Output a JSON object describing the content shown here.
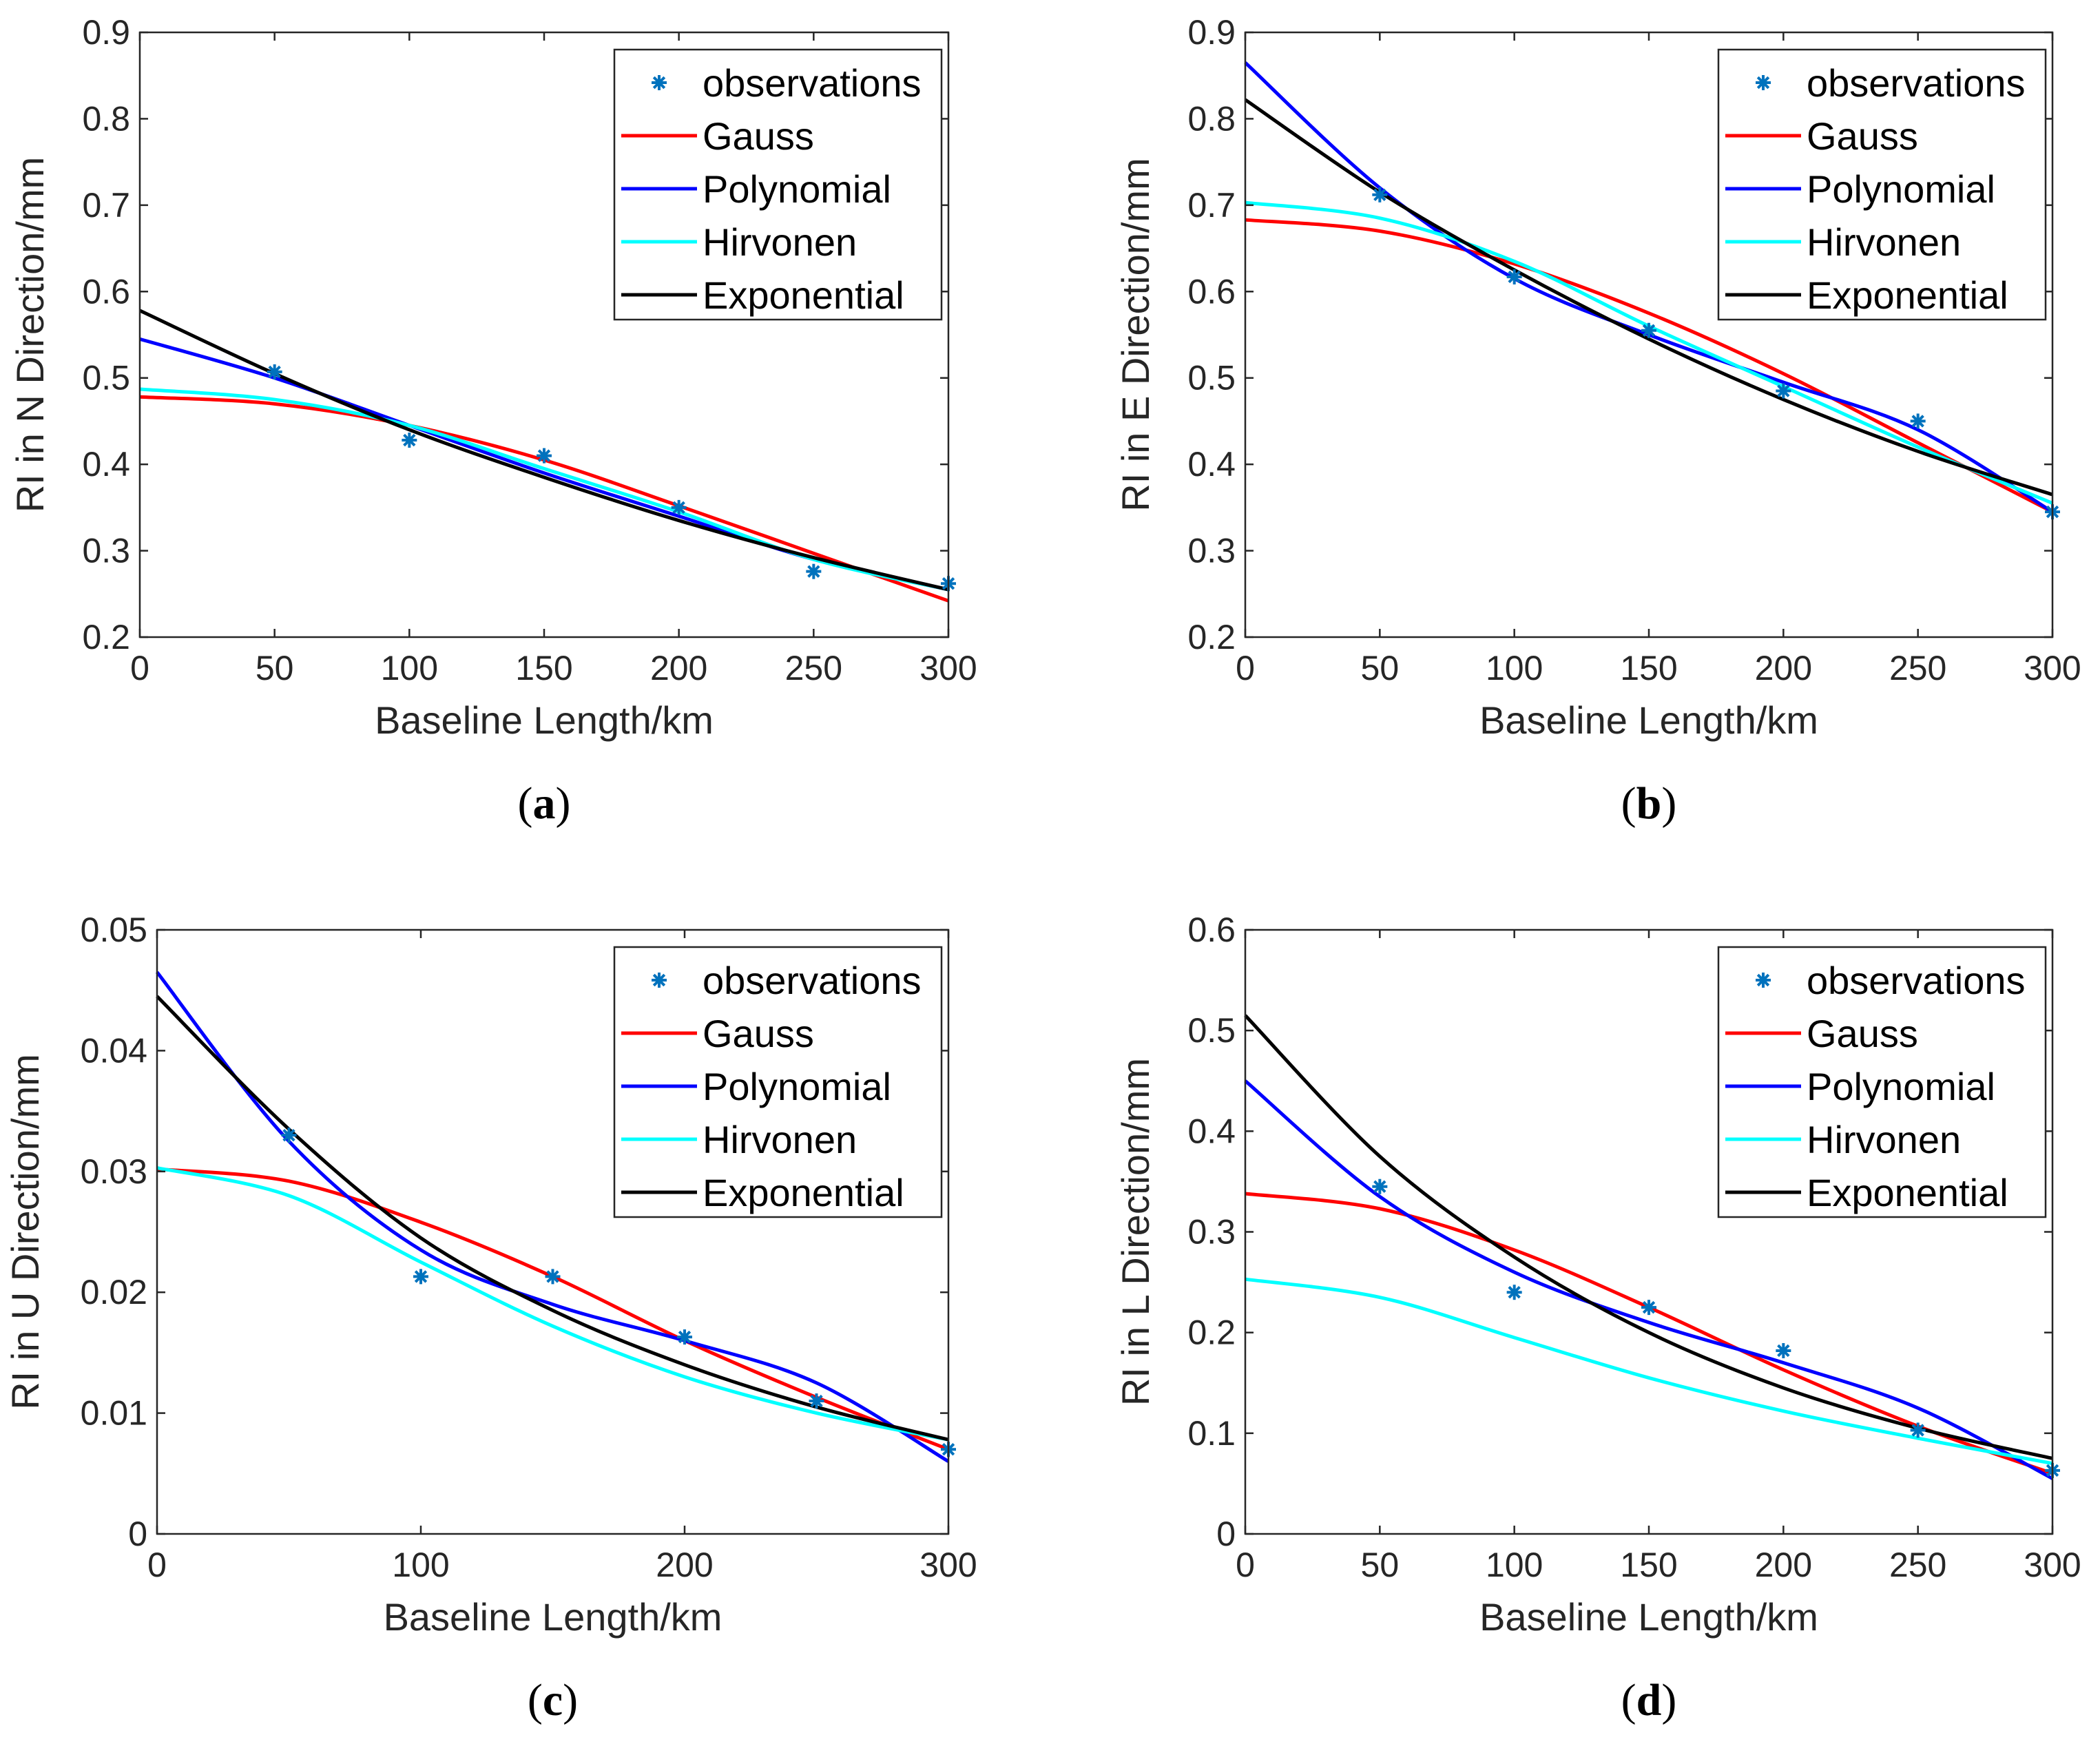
{
  "colors": {
    "observations": "#0072BD",
    "Gauss": "#FF0000",
    "Polynomial": "#0000FF",
    "Hirvonen": "#00FFFF",
    "Exponential": "#000000"
  },
  "chart_data": [
    {
      "type": "line",
      "caption": "a",
      "xlabel": "Baseline Length/km",
      "ylabel": "RI in N Direction/mm",
      "xlim": [
        0,
        300
      ],
      "ylim": [
        0.2,
        0.9
      ],
      "xticks": [
        0,
        50,
        100,
        150,
        200,
        250,
        300
      ],
      "yticks": [
        0.2,
        0.3,
        0.4,
        0.5,
        0.6,
        0.7,
        0.8,
        0.9
      ],
      "legend": "top-right",
      "legend_entries": [
        "observations",
        "Gauss",
        "Polynomial",
        "Hirvonen",
        "Exponential"
      ],
      "x": [
        0,
        50,
        100,
        150,
        200,
        250,
        300
      ],
      "observations": {
        "x": [
          50,
          100,
          150,
          200,
          250,
          300
        ],
        "y": [
          0.507,
          0.428,
          0.41,
          0.35,
          0.276,
          0.262
        ]
      },
      "series": [
        {
          "name": "Gauss",
          "values": [
            0.478,
            0.47,
            0.445,
            0.405,
            0.352,
            0.297,
            0.242
          ]
        },
        {
          "name": "Polynomial",
          "values": [
            0.545,
            0.5,
            0.445,
            0.39,
            0.34,
            0.29,
            0.255
          ]
        },
        {
          "name": "Hirvonen",
          "values": [
            0.487,
            0.475,
            0.445,
            0.395,
            0.345,
            0.29,
            0.255
          ]
        },
        {
          "name": "Exponential",
          "values": [
            0.578,
            0.505,
            0.44,
            0.385,
            0.335,
            0.292,
            0.255
          ]
        }
      ]
    },
    {
      "type": "line",
      "caption": "b",
      "xlabel": "Baseline Length/km",
      "ylabel": "RI in E Direction/mm",
      "xlim": [
        0,
        300
      ],
      "ylim": [
        0.2,
        0.9
      ],
      "xticks": [
        0,
        50,
        100,
        150,
        200,
        250,
        300
      ],
      "yticks": [
        0.2,
        0.3,
        0.4,
        0.5,
        0.6,
        0.7,
        0.8,
        0.9
      ],
      "legend": "top-right",
      "legend_entries": [
        "observations",
        "Gauss",
        "Polynomial",
        "Hirvonen",
        "Exponential"
      ],
      "x": [
        0,
        50,
        100,
        150,
        200,
        250,
        300
      ],
      "observations": {
        "x": [
          50,
          100,
          150,
          200,
          250,
          300
        ],
        "y": [
          0.712,
          0.617,
          0.555,
          0.485,
          0.45,
          0.345
        ]
      },
      "series": [
        {
          "name": "Gauss",
          "values": [
            0.683,
            0.67,
            0.632,
            0.575,
            0.505,
            0.425,
            0.345
          ]
        },
        {
          "name": "Polynomial",
          "values": [
            0.865,
            0.72,
            0.615,
            0.55,
            0.495,
            0.44,
            0.345
          ]
        },
        {
          "name": "Hirvonen",
          "values": [
            0.703,
            0.685,
            0.635,
            0.56,
            0.49,
            0.42,
            0.355
          ]
        },
        {
          "name": "Exponential",
          "values": [
            0.822,
            0.715,
            0.625,
            0.545,
            0.475,
            0.415,
            0.365
          ]
        }
      ]
    },
    {
      "type": "line",
      "caption": "c",
      "xlabel": "Baseline Length/km",
      "ylabel": "RI in U Direction/mm",
      "xlim": [
        0,
        300
      ],
      "ylim": [
        0,
        0.05
      ],
      "xticks": [
        0,
        100,
        200,
        300
      ],
      "yticks": [
        0,
        0.01,
        0.02,
        0.03,
        0.04,
        0.05
      ],
      "legend": "top-right",
      "legend_entries": [
        "observations",
        "Gauss",
        "Polynomial",
        "Hirvonen",
        "Exponential"
      ],
      "x": [
        0,
        50,
        100,
        150,
        200,
        250,
        300
      ],
      "observations": {
        "x": [
          50,
          100,
          150,
          200,
          250,
          300
        ],
        "y": [
          0.033,
          0.0213,
          0.0213,
          0.0163,
          0.011,
          0.007
        ]
      },
      "series": [
        {
          "name": "Gauss",
          "values": [
            0.0302,
            0.0292,
            0.0258,
            0.0213,
            0.016,
            0.0113,
            0.007
          ]
        },
        {
          "name": "Polynomial",
          "values": [
            0.0465,
            0.0325,
            0.0235,
            0.019,
            0.016,
            0.0125,
            0.006
          ]
        },
        {
          "name": "Hirvonen",
          "values": [
            0.0303,
            0.028,
            0.0225,
            0.0172,
            0.013,
            0.01,
            0.0078
          ]
        },
        {
          "name": "Exponential",
          "values": [
            0.0445,
            0.0335,
            0.0245,
            0.0185,
            0.014,
            0.0105,
            0.0078
          ]
        }
      ]
    },
    {
      "type": "line",
      "caption": "d",
      "xlabel": "Baseline Length/km",
      "ylabel": "RI in L Direction/mm",
      "xlim": [
        0,
        300
      ],
      "ylim": [
        0,
        0.6
      ],
      "xticks": [
        0,
        50,
        100,
        150,
        200,
        250,
        300
      ],
      "yticks": [
        0,
        0.1,
        0.2,
        0.3,
        0.4,
        0.5,
        0.6
      ],
      "legend": "top-right",
      "legend_entries": [
        "observations",
        "Gauss",
        "Polynomial",
        "Hirvonen",
        "Exponential"
      ],
      "x": [
        0,
        50,
        100,
        150,
        200,
        250,
        300
      ],
      "observations": {
        "x": [
          50,
          100,
          150,
          200,
          250,
          300
        ],
        "y": [
          0.345,
          0.24,
          0.225,
          0.182,
          0.103,
          0.063
        ]
      },
      "series": [
        {
          "name": "Gauss",
          "values": [
            0.338,
            0.323,
            0.282,
            0.225,
            0.163,
            0.107,
            0.06
          ]
        },
        {
          "name": "Polynomial",
          "values": [
            0.45,
            0.335,
            0.26,
            0.21,
            0.17,
            0.125,
            0.055
          ]
        },
        {
          "name": "Hirvonen",
          "values": [
            0.253,
            0.235,
            0.195,
            0.155,
            0.122,
            0.095,
            0.07
          ]
        },
        {
          "name": "Exponential",
          "values": [
            0.515,
            0.375,
            0.275,
            0.2,
            0.145,
            0.105,
            0.075
          ]
        }
      ]
    }
  ]
}
